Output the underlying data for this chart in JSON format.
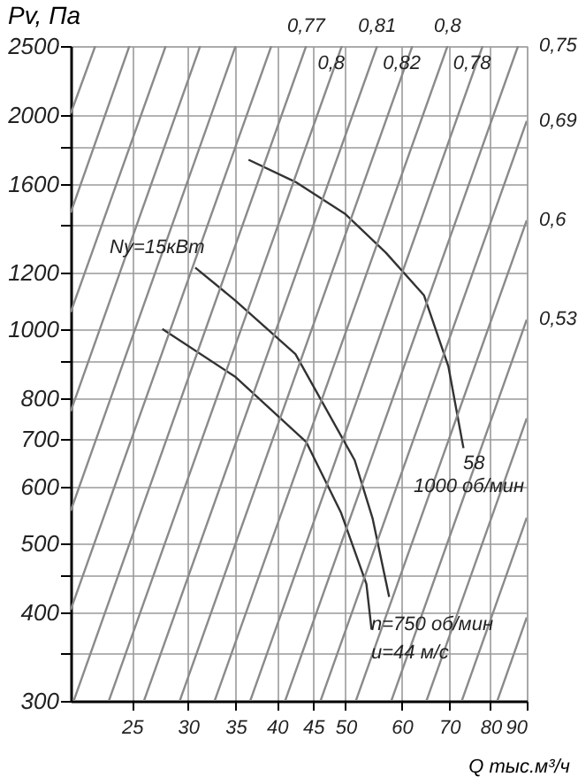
{
  "chart_data": {
    "type": "line",
    "xlabel": "Q тыс.м³/ч",
    "ylabel": "Pv, Па",
    "xlim": [
      20.5,
      90
    ],
    "ylim": [
      300,
      2500
    ],
    "xticks": [
      25,
      30,
      35,
      40,
      45,
      50,
      60,
      70,
      80,
      90
    ],
    "yticks": [
      300,
      {
        "value": 350,
        "label": null
      },
      400,
      {
        "value": 450,
        "label": null
      },
      500,
      600,
      700,
      800,
      {
        "value": 900,
        "label": null
      },
      1000,
      1200,
      {
        "value": 1400,
        "label": null
      },
      1600,
      {
        "value": 1800,
        "label": null
      },
      2000,
      2500
    ],
    "log": "xy",
    "grid": true,
    "series": [
      {
        "color": "#333333",
        "x": [
          36.5,
          42.5,
          50,
          57,
          64.5,
          69.8,
          73.3
        ],
        "values": [
          1730,
          1610,
          1450,
          1280,
          1115,
          886,
          680
        ]
      },
      {
        "color": "#333333",
        "x": [
          30.7,
          35,
          42.5,
          51.5,
          54.6,
          57.6
        ],
        "values": [
          1220,
          1096,
          922,
          654,
          541,
          420
        ]
      },
      {
        "color": "#333333",
        "x": [
          27.6,
          35,
          44,
          49.3,
          53.5,
          54.4
        ],
        "values": [
          1000,
          856,
          694,
          551,
          438,
          378
        ]
      },
      {
        "color": "#8a8a8a",
        "x": [
          20.5,
          22.2
        ],
        "values": [
          2009,
          2500
        ]
      },
      {
        "color": "#8a8a8a",
        "x": [
          20.5,
          24.8
        ],
        "values": [
          1457,
          2500
        ]
      },
      {
        "color": "#8a8a8a",
        "x": [
          20.5,
          27.9
        ],
        "values": [
          1056,
          2500
        ]
      },
      {
        "color": "#8a8a8a",
        "x": [
          20.5,
          31.2
        ],
        "values": [
          766,
          2500
        ]
      },
      {
        "color": "#8a8a8a",
        "x": [
          20.5,
          35.0
        ],
        "values": [
          555,
          2500
        ]
      },
      {
        "color": "#8a8a8a",
        "x": [
          20.5,
          39.3
        ],
        "values": [
          403,
          2500
        ]
      },
      {
        "color": "#8a8a8a",
        "x": [
          20.7,
          44.0
        ],
        "values": [
          300,
          2500
        ]
      },
      {
        "color": "#8a8a8a",
        "x": [
          23.2,
          49.4
        ],
        "values": [
          300,
          2500
        ]
      },
      {
        "color": "#8a8a8a",
        "x": [
          26.0,
          55.4
        ],
        "values": [
          300,
          2500
        ]
      },
      {
        "color": "#8a8a8a",
        "x": [
          29.2,
          62.1
        ],
        "values": [
          300,
          2500
        ]
      },
      {
        "color": "#8a8a8a",
        "x": [
          32.7,
          69.6
        ],
        "values": [
          300,
          2500
        ]
      },
      {
        "color": "#8a8a8a",
        "x": [
          36.7,
          78.0
        ],
        "values": [
          300,
          2500
        ]
      },
      {
        "color": "#8a8a8a",
        "x": [
          41.1,
          87.5
        ],
        "values": [
          300,
          2500
        ]
      },
      {
        "color": "#8a8a8a",
        "x": [
          46.1,
          90
        ],
        "values": [
          300,
          1961
        ]
      },
      {
        "color": "#8a8a8a",
        "x": [
          51.7,
          90
        ],
        "values": [
          300,
          1422
        ]
      },
      {
        "color": "#8a8a8a",
        "x": [
          58.0,
          90
        ],
        "values": [
          300,
          1031
        ]
      },
      {
        "color": "#8a8a8a",
        "x": [
          65.0,
          90
        ],
        "values": [
          300,
          749
        ]
      },
      {
        "color": "#8a8a8a",
        "x": [
          72.9,
          90
        ],
        "values": [
          300,
          543
        ]
      },
      {
        "color": "#8a8a8a",
        "x": [
          81.8,
          90
        ],
        "values": [
          300,
          393
        ]
      }
    ],
    "annotations": [
      "Ny=15кВт",
      "58",
      "1000 об/мин",
      "n=750 об/мин",
      "u=44 м/с",
      {
        "text": "0,77",
        "x": 44.0,
        "y": 2500
      },
      {
        "text": "0,8",
        "x": 49.4,
        "y": 2500
      },
      {
        "text": "0,81",
        "x": 55.4,
        "y": 2500
      },
      {
        "text": "0,82",
        "x": 62.1,
        "y": 2500
      },
      {
        "text": "0,8",
        "x": 69.6,
        "y": 2500
      },
      {
        "text": "0,78",
        "x": 78.0,
        "y": 2500
      },
      {
        "text": "0,75",
        "x": 90,
        "y": 2500
      },
      {
        "text": "0,69",
        "x": 90,
        "y": 1961
      },
      {
        "text": "0,6",
        "x": 90,
        "y": 1422
      },
      {
        "text": "0,53",
        "x": 90,
        "y": 1031
      }
    ]
  }
}
